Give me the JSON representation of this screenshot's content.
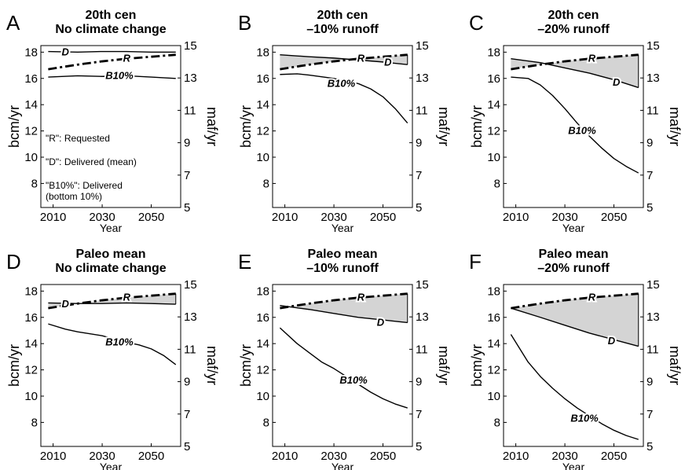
{
  "chart_data": [
    {
      "type": "line",
      "letter": "A",
      "title": [
        "20th cen",
        "No climate change"
      ],
      "xlabel": "Year",
      "ylabel": "bcm/yr",
      "ylabel_right": "maf/yr",
      "xlim": [
        2005,
        2062
      ],
      "ylim": [
        6.17,
        18.5
      ],
      "ylim_right": [
        5,
        15
      ],
      "xticks": [
        2010,
        2030,
        2050
      ],
      "yticks": [
        8,
        10,
        12,
        14,
        16,
        18
      ],
      "yticks_right": [
        5,
        7,
        9,
        11,
        13,
        15
      ],
      "shaded_gap": false,
      "series": [
        {
          "name": "R",
          "style": "dashdot",
          "x": [
            2008,
            2020,
            2030,
            2040,
            2050,
            2060
          ],
          "y": [
            16.7,
            17.05,
            17.3,
            17.5,
            17.65,
            17.8
          ]
        },
        {
          "name": "D",
          "style": "solid",
          "x": [
            2008,
            2020,
            2030,
            2040,
            2050,
            2060
          ],
          "y": [
            18.05,
            18.0,
            18.05,
            18.05,
            18.0,
            18.0
          ]
        },
        {
          "name": "B10%",
          "style": "solid",
          "x": [
            2008,
            2020,
            2030,
            2040,
            2050,
            2060
          ],
          "y": [
            16.1,
            16.2,
            16.15,
            16.2,
            16.1,
            16.0
          ]
        }
      ],
      "annotations": [
        {
          "text": "D",
          "x": 2015,
          "y": 18.0
        },
        {
          "text": "R",
          "x": 2040,
          "y": 17.5
        },
        {
          "text": "B10%",
          "x": 2037,
          "y": 16.2
        }
      ],
      "notes": [
        "\"R\": Requested",
        "\"D\": Delivered (mean)",
        "\"B10%\": Delivered",
        "(bottom 10%)"
      ]
    },
    {
      "type": "line",
      "letter": "B",
      "title": [
        "20th cen",
        "–10% runoff"
      ],
      "xlabel": "Year",
      "ylabel": "bcm/yr",
      "ylabel_right": "maf/yr",
      "xlim": [
        2005,
        2062
      ],
      "ylim": [
        6.17,
        18.5
      ],
      "ylim_right": [
        5,
        15
      ],
      "xticks": [
        2010,
        2030,
        2050
      ],
      "yticks": [
        8,
        10,
        12,
        14,
        16,
        18
      ],
      "yticks_right": [
        5,
        7,
        9,
        11,
        13,
        15
      ],
      "shaded_gap": true,
      "series": [
        {
          "name": "R",
          "style": "dashdot",
          "x": [
            2008,
            2020,
            2030,
            2040,
            2050,
            2060
          ],
          "y": [
            16.7,
            17.05,
            17.3,
            17.5,
            17.65,
            17.8
          ]
        },
        {
          "name": "D",
          "style": "solid",
          "x": [
            2008,
            2020,
            2030,
            2040,
            2050,
            2060
          ],
          "y": [
            17.8,
            17.65,
            17.55,
            17.4,
            17.25,
            17.05
          ]
        },
        {
          "name": "B10%",
          "style": "solid",
          "x": [
            2008,
            2015,
            2020,
            2030,
            2040,
            2045,
            2050,
            2055,
            2060
          ],
          "y": [
            16.3,
            16.35,
            16.25,
            16.0,
            15.6,
            15.2,
            14.6,
            13.7,
            12.6
          ]
        }
      ],
      "annotations": [
        {
          "text": "R",
          "x": 2041,
          "y": 17.5
        },
        {
          "text": "D",
          "x": 2052,
          "y": 17.2
        },
        {
          "text": "B10%",
          "x": 2033,
          "y": 15.6
        }
      ]
    },
    {
      "type": "line",
      "letter": "C",
      "title": [
        "20th cen",
        "–20% runoff"
      ],
      "xlabel": "Year",
      "ylabel": "bcm/yr",
      "ylabel_right": "maf/yr",
      "xlim": [
        2005,
        2062
      ],
      "ylim": [
        6.17,
        18.5
      ],
      "ylim_right": [
        5,
        15
      ],
      "xticks": [
        2010,
        2030,
        2050
      ],
      "yticks": [
        8,
        10,
        12,
        14,
        16,
        18
      ],
      "yticks_right": [
        5,
        7,
        9,
        11,
        13,
        15
      ],
      "shaded_gap": true,
      "series": [
        {
          "name": "R",
          "style": "dashdot",
          "x": [
            2008,
            2020,
            2030,
            2040,
            2050,
            2060
          ],
          "y": [
            16.7,
            17.05,
            17.3,
            17.5,
            17.65,
            17.8
          ]
        },
        {
          "name": "D",
          "style": "solid",
          "x": [
            2008,
            2020,
            2030,
            2040,
            2050,
            2060
          ],
          "y": [
            17.5,
            17.2,
            16.8,
            16.4,
            15.9,
            15.3
          ]
        },
        {
          "name": "B10%",
          "style": "solid",
          "x": [
            2008,
            2015,
            2020,
            2025,
            2030,
            2035,
            2040,
            2045,
            2050,
            2055,
            2060
          ],
          "y": [
            16.1,
            16.0,
            15.5,
            14.7,
            13.7,
            12.6,
            11.6,
            10.7,
            9.9,
            9.3,
            8.8
          ]
        }
      ],
      "annotations": [
        {
          "text": "R",
          "x": 2041,
          "y": 17.5
        },
        {
          "text": "D",
          "x": 2051,
          "y": 15.7
        },
        {
          "text": "B10%",
          "x": 2037,
          "y": 12.0
        }
      ]
    },
    {
      "type": "line",
      "letter": "D",
      "title": [
        "Paleo mean",
        "No climate change"
      ],
      "xlabel": "Year",
      "ylabel": "bcm/yr",
      "ylabel_right": "maf/yr",
      "xlim": [
        2005,
        2062
      ],
      "ylim": [
        6.17,
        18.5
      ],
      "ylim_right": [
        5,
        15
      ],
      "xticks": [
        2010,
        2030,
        2050
      ],
      "yticks": [
        8,
        10,
        12,
        14,
        16,
        18
      ],
      "yticks_right": [
        5,
        7,
        9,
        11,
        13,
        15
      ],
      "shaded_gap": true,
      "series": [
        {
          "name": "R",
          "style": "dashdot",
          "x": [
            2008,
            2020,
            2030,
            2040,
            2050,
            2060
          ],
          "y": [
            16.7,
            17.05,
            17.3,
            17.5,
            17.65,
            17.8
          ]
        },
        {
          "name": "D",
          "style": "solid",
          "x": [
            2008,
            2020,
            2030,
            2040,
            2050,
            2060
          ],
          "y": [
            17.1,
            17.05,
            17.05,
            17.1,
            17.05,
            17.0
          ]
        },
        {
          "name": "B10%",
          "style": "solid",
          "x": [
            2008,
            2015,
            2020,
            2030,
            2040,
            2045,
            2050,
            2055,
            2060
          ],
          "y": [
            15.5,
            15.1,
            14.9,
            14.6,
            14.1,
            13.9,
            13.6,
            13.1,
            12.4
          ]
        }
      ],
      "annotations": [
        {
          "text": "D",
          "x": 2015,
          "y": 17.0
        },
        {
          "text": "R",
          "x": 2040,
          "y": 17.5
        },
        {
          "text": "B10%",
          "x": 2037,
          "y": 14.1
        }
      ]
    },
    {
      "type": "line",
      "letter": "E",
      "title": [
        "Paleo mean",
        "–10% runoff"
      ],
      "xlabel": "Year",
      "ylabel": "bcm/yr",
      "ylabel_right": "maf/yr",
      "xlim": [
        2005,
        2062
      ],
      "ylim": [
        6.17,
        18.5
      ],
      "ylim_right": [
        5,
        15
      ],
      "xticks": [
        2010,
        2030,
        2050
      ],
      "yticks": [
        8,
        10,
        12,
        14,
        16,
        18
      ],
      "yticks_right": [
        5,
        7,
        9,
        11,
        13,
        15
      ],
      "shaded_gap": true,
      "series": [
        {
          "name": "R",
          "style": "dashdot",
          "x": [
            2008,
            2020,
            2030,
            2040,
            2050,
            2060
          ],
          "y": [
            16.7,
            17.05,
            17.3,
            17.5,
            17.65,
            17.8
          ]
        },
        {
          "name": "D",
          "style": "solid",
          "x": [
            2008,
            2020,
            2030,
            2040,
            2050,
            2060
          ],
          "y": [
            16.9,
            16.6,
            16.3,
            16.0,
            15.8,
            15.6
          ]
        },
        {
          "name": "B10%",
          "style": "solid",
          "x": [
            2008,
            2015,
            2020,
            2025,
            2030,
            2035,
            2040,
            2045,
            2050,
            2055,
            2060
          ],
          "y": [
            15.2,
            14.0,
            13.3,
            12.6,
            12.1,
            11.5,
            10.9,
            10.3,
            9.8,
            9.4,
            9.1
          ]
        }
      ],
      "annotations": [
        {
          "text": "R",
          "x": 2041,
          "y": 17.5
        },
        {
          "text": "D",
          "x": 2049,
          "y": 15.6
        },
        {
          "text": "B10%",
          "x": 2038,
          "y": 11.2
        }
      ]
    },
    {
      "type": "line",
      "letter": "F",
      "title": [
        "Paleo mean",
        "–20% runoff"
      ],
      "xlabel": "Year",
      "ylabel": "bcm/yr",
      "ylabel_right": "maf/yr",
      "xlim": [
        2005,
        2062
      ],
      "ylim": [
        6.17,
        18.5
      ],
      "ylim_right": [
        5,
        15
      ],
      "xticks": [
        2010,
        2030,
        2050
      ],
      "yticks": [
        8,
        10,
        12,
        14,
        16,
        18
      ],
      "yticks_right": [
        5,
        7,
        9,
        11,
        13,
        15
      ],
      "shaded_gap": true,
      "series": [
        {
          "name": "R",
          "style": "dashdot",
          "x": [
            2008,
            2020,
            2030,
            2040,
            2050,
            2060
          ],
          "y": [
            16.7,
            17.05,
            17.3,
            17.5,
            17.65,
            17.8
          ]
        },
        {
          "name": "D",
          "style": "solid",
          "x": [
            2008,
            2020,
            2030,
            2040,
            2050,
            2060
          ],
          "y": [
            16.7,
            16.0,
            15.4,
            14.8,
            14.3,
            13.8
          ]
        },
        {
          "name": "B10%",
          "style": "solid",
          "x": [
            2008,
            2015,
            2020,
            2025,
            2030,
            2035,
            2040,
            2045,
            2050,
            2055,
            2060
          ],
          "y": [
            14.7,
            12.6,
            11.5,
            10.6,
            9.8,
            9.1,
            8.5,
            7.9,
            7.4,
            7.0,
            6.7
          ]
        }
      ],
      "annotations": [
        {
          "text": "R",
          "x": 2041,
          "y": 17.5
        },
        {
          "text": "D",
          "x": 2049,
          "y": 14.2
        },
        {
          "text": "B10%",
          "x": 2038,
          "y": 8.3
        }
      ]
    }
  ],
  "style": {
    "line_color": "#000000",
    "shade_color": "#d4d4d4",
    "background": "#ffffff"
  }
}
